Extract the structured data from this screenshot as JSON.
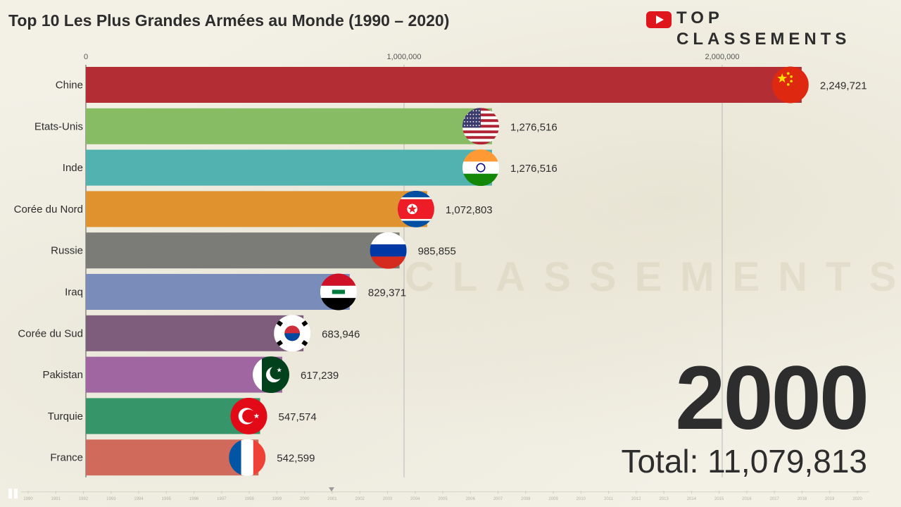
{
  "title": "Top 10 Les Plus Grandes Armées au Monde (1990 – 2020)",
  "logo": {
    "top": "TOP",
    "sub": "CLASSEMENTS"
  },
  "year": "2000",
  "total": "Total: 11,079,813",
  "colors": {
    "axis": "#555555",
    "grid": "#b8b8b8",
    "text": "#2d2d2d"
  },
  "chart_data": {
    "type": "bar",
    "orientation": "horizontal",
    "title": "Top 10 Les Plus Grandes Armées au Monde (1990 – 2020)",
    "xlabel": "",
    "ylabel": "",
    "xlim": [
      0,
      2650000
    ],
    "xticks": [
      0,
      1000000,
      2000000
    ],
    "xtick_labels": [
      "0",
      "1,000,000",
      "2,000,000"
    ],
    "grid": true,
    "categories": [
      "Chine",
      "Etats-Unis",
      "Inde",
      "Corée du Nord",
      "Russie",
      "Iraq",
      "Corée du Sud",
      "Pakistan",
      "Turquie",
      "France"
    ],
    "values": [
      2249721,
      1276516,
      1276516,
      1072803,
      985855,
      829371,
      683946,
      617239,
      547574,
      542599
    ],
    "value_labels": [
      "2,249,721",
      "1,276,516",
      "1,276,516",
      "1,072,803",
      "985,855",
      "829,371",
      "683,946",
      "617,239",
      "547,574",
      "542,599"
    ],
    "bar_colors": [
      "#b22e34",
      "#87bc65",
      "#52b2b0",
      "#e0922f",
      "#7b7b78",
      "#7a8cba",
      "#7e5c7c",
      "#a066a1",
      "#36966a",
      "#d06a5a"
    ],
    "flags": [
      "china",
      "usa",
      "india",
      "north-korea",
      "russia",
      "iraq",
      "south-korea",
      "pakistan",
      "turkey",
      "france"
    ]
  },
  "timeline": {
    "years": [
      "1990",
      "1991",
      "1992",
      "1993",
      "1994",
      "1995",
      "1996",
      "1997",
      "1998",
      "1999",
      "2000",
      "2001",
      "2002",
      "2003",
      "2004",
      "2005",
      "2006",
      "2007",
      "2008",
      "2009",
      "2010",
      "2011",
      "2012",
      "2013",
      "2014",
      "2015",
      "2016",
      "2017",
      "2018",
      "2019",
      "2020"
    ]
  }
}
